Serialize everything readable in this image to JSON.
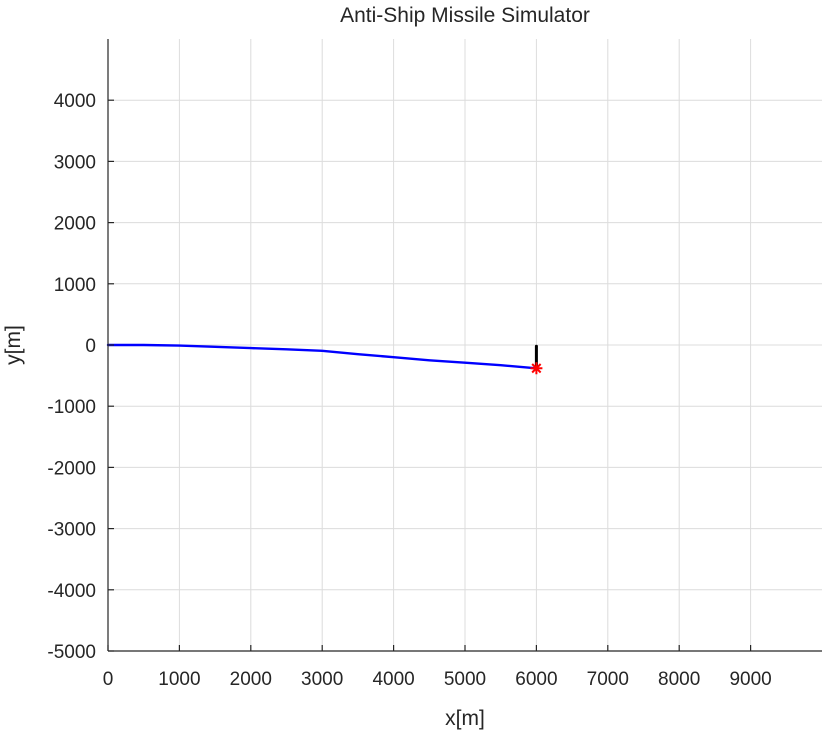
{
  "chart_data": {
    "type": "line",
    "title": "Anti-Ship Missile Simulator",
    "xlabel": "x[m]",
    "ylabel": "y[m]",
    "xlim": [
      0,
      10000
    ],
    "ylim": [
      -5000,
      5000
    ],
    "xticks": [
      0,
      1000,
      2000,
      3000,
      4000,
      5000,
      6000,
      7000,
      8000,
      9000
    ],
    "xtick_labels": [
      "0",
      "1000",
      "2000",
      "3000",
      "4000",
      "5000",
      "6000",
      "7000",
      "8000",
      "9000"
    ],
    "yticks": [
      4000,
      3000,
      2000,
      1000,
      0,
      -1000,
      -2000,
      -3000,
      -4000,
      -5000
    ],
    "ytick_labels": [
      "4000",
      "3000",
      "2000",
      "1000",
      "0",
      "-1000",
      "-2000",
      "-3000",
      "-4000",
      "-5000"
    ],
    "grid": true,
    "series": [
      {
        "color": "#0000ff",
        "x": [
          0,
          500,
          1000,
          1500,
          2000,
          2500,
          3000,
          3500,
          4000,
          4500,
          5000,
          5500,
          6000
        ],
        "y": [
          0,
          0,
          -10,
          -30,
          -50,
          -70,
          -95,
          -150,
          -200,
          -250,
          -290,
          -330,
          -380
        ]
      },
      {
        "color": "#000000",
        "x": [
          6000,
          6000
        ],
        "y": [
          -20,
          -380
        ]
      }
    ],
    "markers": [
      {
        "shape": "asterisk",
        "color": "#ff0000",
        "x": 6000,
        "y": -380
      }
    ]
  }
}
